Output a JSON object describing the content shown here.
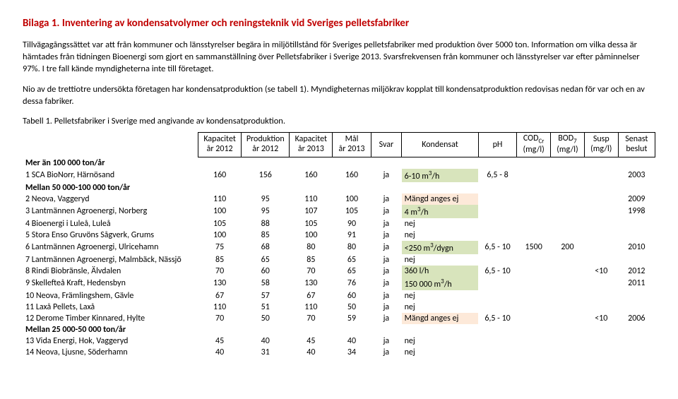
{
  "title": "Bilaga 1. Inventering av kondensatvolymer och reningsteknik vid Sveriges pelletsfabriker",
  "para1": "Tillvägagångssättet var att från kommuner och länsstyrelser begära in miljötillstånd för Sveriges pelletsfabriker med produktion över 5000 ton. Information om vilka dessa är hämtades från tidningen Bioenergi som gjort en sammanställning över Pelletsfabriker i Sverige 2013. Svarsfrekvensen från kommuner och länsstyrelser var efter påminnelser 97%. I tre fall kände myndigheterna inte till företaget.",
  "para2": "Nio av de trettiotre undersökta företagen har kondensatproduktion (se tabell 1). Myndigheternas miljökrav kopplat till kondensatproduktion redovisas nedan för var och en av dessa fabriker.",
  "table_caption": "Tabell 1. Pelletsfabriker i Sverige med angivande av kondensatproduktion.",
  "headers": {
    "kapacitet12": "Kapacitet\når 2012",
    "produktion12": "Produktion\når 2012",
    "kapacitet13": "Kapacitet\når 2013",
    "mal13": "Mål\når 2013",
    "svar": "Svar",
    "kondensat": "Kondensat",
    "ph": "pH",
    "cod": "CODCr\n(mg/l)",
    "bod": "BOD7\n(mg/l)",
    "susp": "Susp\n(mg/l)",
    "senast": "Senast\nbeslut"
  },
  "sections": [
    {
      "label": "Mer än 100 000 ton/år",
      "rows": [
        {
          "n": "1",
          "name": "SCA BioNorr, Härnösand",
          "k12": "160",
          "p12": "156",
          "k13": "160",
          "m13": "160",
          "svar": "ja",
          "kond": "6-10 m³/h",
          "kond_hl": "green",
          "ph": "6,5 - 8",
          "cod": "",
          "bod": "",
          "susp": "",
          "beslut": "2003"
        }
      ]
    },
    {
      "label": "Mellan 50 000-100 000 ton/år",
      "rows": [
        {
          "n": "2",
          "name": "Neova, Vaggeryd",
          "k12": "110",
          "p12": "95",
          "k13": "110",
          "m13": "100",
          "svar": "ja",
          "kond": "Mängd anges ej",
          "kond_hl": "orange",
          "ph": "",
          "cod": "",
          "bod": "",
          "susp": "",
          "beslut": "2009"
        },
        {
          "n": "3",
          "name": "Lantmännen Agroenergi, Norberg",
          "k12": "100",
          "p12": "95",
          "k13": "107",
          "m13": "105",
          "svar": "ja",
          "kond": "4 m³/h",
          "kond_hl": "green",
          "ph": "",
          "cod": "",
          "bod": "",
          "susp": "",
          "beslut": "1998"
        },
        {
          "n": "4",
          "name": "Bioenergi i Luleå, Luleå",
          "k12": "105",
          "p12": "88",
          "k13": "105",
          "m13": "90",
          "svar": "ja",
          "kond": "nej",
          "kond_hl": "",
          "ph": "",
          "cod": "",
          "bod": "",
          "susp": "",
          "beslut": ""
        },
        {
          "n": "5",
          "name": "Stora Enso Gruvöns Sågverk, Grums",
          "k12": "100",
          "p12": "85",
          "k13": "100",
          "m13": "91",
          "svar": "ja",
          "kond": "nej",
          "kond_hl": "",
          "ph": "",
          "cod": "",
          "bod": "",
          "susp": "",
          "beslut": ""
        },
        {
          "n": "6",
          "name": "Lantmännen Agroenergi, Ulricehamn",
          "k12": "75",
          "p12": "68",
          "k13": "80",
          "m13": "80",
          "svar": "ja",
          "kond": "<250 m³/dygn",
          "kond_hl": "green",
          "ph": "6,5 - 10",
          "cod": "1500",
          "bod": "200",
          "susp": "",
          "beslut": "2010"
        },
        {
          "n": "7",
          "name": "Lantmännen Agroenergi, Malmbäck, Nässjö",
          "k12": "85",
          "p12": "65",
          "k13": "85",
          "m13": "65",
          "svar": "ja",
          "kond": "nej",
          "kond_hl": "",
          "ph": "",
          "cod": "",
          "bod": "",
          "susp": "",
          "beslut": ""
        },
        {
          "n": "8",
          "name": "Rindi Biobränsle, Älvdalen",
          "k12": "70",
          "p12": "60",
          "k13": "70",
          "m13": "65",
          "svar": "ja",
          "kond": "360 l/h",
          "kond_hl": "green",
          "ph": "6,5 - 10",
          "cod": "",
          "bod": "",
          "susp": "<10",
          "beslut": "2012"
        },
        {
          "n": "9",
          "name": "Skellefteå Kraft, Hedensbyn",
          "k12": "130",
          "p12": "58",
          "k13": "130",
          "m13": "76",
          "svar": "ja",
          "kond": "150 000 m³/h",
          "kond_hl": "green",
          "ph": "",
          "cod": "",
          "bod": "",
          "susp": "",
          "beslut": "2011"
        },
        {
          "n": "10",
          "name": "Neova, Främlingshem, Gävle",
          "k12": "67",
          "p12": "57",
          "k13": "67",
          "m13": "60",
          "svar": "ja",
          "kond": "nej",
          "kond_hl": "",
          "ph": "",
          "cod": "",
          "bod": "",
          "susp": "",
          "beslut": ""
        },
        {
          "n": "11",
          "name": "Laxå Pellets, Laxå",
          "k12": "110",
          "p12": "51",
          "k13": "110",
          "m13": "50",
          "svar": "ja",
          "kond": "nej",
          "kond_hl": "",
          "ph": "",
          "cod": "",
          "bod": "",
          "susp": "",
          "beslut": ""
        },
        {
          "n": "12",
          "name": "Derome Timber Kinnared, Hylte",
          "k12": "70",
          "p12": "50",
          "k13": "70",
          "m13": "59",
          "svar": "ja",
          "kond": "Mängd anges ej",
          "kond_hl": "orange",
          "ph": "6,5 - 10",
          "cod": "",
          "bod": "",
          "susp": "<10",
          "beslut": "2006"
        }
      ]
    },
    {
      "label": "Mellan 25 000-50 000 ton/år",
      "rows": [
        {
          "n": "13",
          "name": "Vida Energi, Hok, Vaggeryd",
          "k12": "45",
          "p12": "40",
          "k13": "45",
          "m13": "40",
          "svar": "ja",
          "kond": "nej",
          "kond_hl": "",
          "ph": "",
          "cod": "",
          "bod": "",
          "susp": "",
          "beslut": ""
        },
        {
          "n": "14",
          "name": "Neova, Ljusne, Söderhamn",
          "k12": "40",
          "p12": "31",
          "k13": "40",
          "m13": "34",
          "svar": "ja",
          "kond": "nej",
          "kond_hl": "",
          "ph": "",
          "cod": "",
          "bod": "",
          "susp": "",
          "beslut": ""
        }
      ]
    }
  ]
}
